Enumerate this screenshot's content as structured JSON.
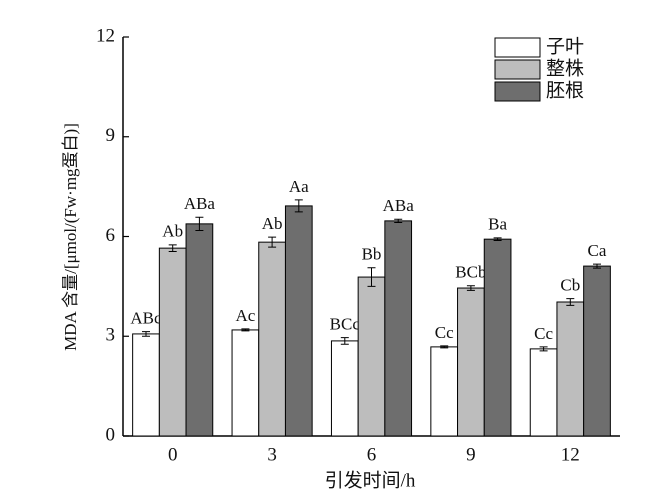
{
  "chart_data": {
    "type": "bar",
    "y_label": "MDA 含量/[μmol/(Fw·mg蛋白)]",
    "x_label": "引发时间/h",
    "categories": [
      "0",
      "3",
      "6",
      "9",
      "12"
    ],
    "series": [
      {
        "name": "子叶",
        "color": "#ffffff",
        "values": [
          3.07,
          3.19,
          2.86,
          2.68,
          2.62
        ],
        "errors": [
          0.07,
          0.03,
          0.1,
          0.03,
          0.06
        ],
        "significance": [
          "ABc",
          "Ac",
          "BCc",
          "Cc",
          "Cc"
        ]
      },
      {
        "name": "整株",
        "color": "#bdbdbd",
        "values": [
          5.65,
          5.83,
          4.78,
          4.45,
          4.03
        ],
        "errors": [
          0.1,
          0.15,
          0.28,
          0.07,
          0.1
        ],
        "significance": [
          "Ab",
          "Ab",
          "Bb",
          "BCb",
          "Cb"
        ]
      },
      {
        "name": "胚根",
        "color": "#6e6e6e",
        "values": [
          6.38,
          6.92,
          6.47,
          5.92,
          5.11
        ],
        "errors": [
          0.2,
          0.18,
          0.05,
          0.04,
          0.06
        ],
        "significance": [
          "ABa",
          "Aa",
          "ABa",
          "Ba",
          "Ca"
        ]
      }
    ],
    "ylim": [
      0,
      12
    ],
    "yticks": [
      0,
      3,
      6,
      9,
      12
    ],
    "legend": "top-right"
  }
}
